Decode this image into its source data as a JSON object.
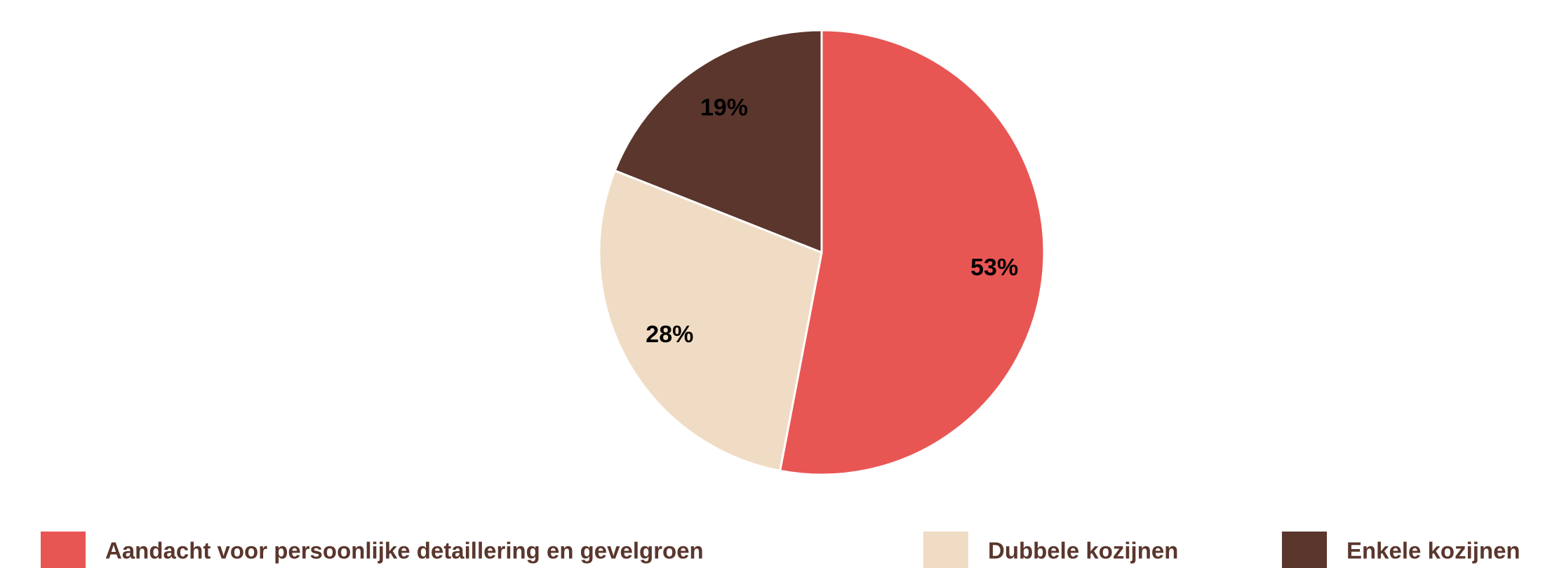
{
  "chart_data": {
    "type": "pie",
    "categories": [
      "Aandacht voor persoonlijke detaillering en gevelgroen",
      "Dubbele kozijnen",
      "Enkele kozijnen"
    ],
    "values": [
      53,
      28,
      19
    ],
    "value_labels": [
      "53%",
      "28%",
      "19%"
    ],
    "colors": [
      "#e85654",
      "#f0dcc4",
      "#5a362d"
    ]
  }
}
